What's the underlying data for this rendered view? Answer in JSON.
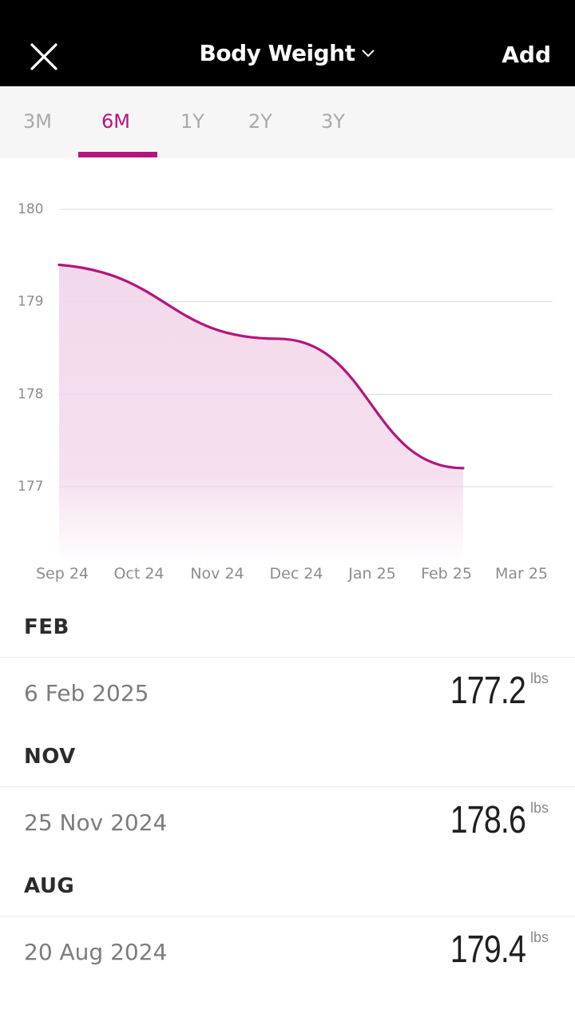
{
  "header": {
    "title": "Body Weight",
    "add_label": "Add",
    "close_icon": "close-icon",
    "dropdown_icon": "chevron-down-icon"
  },
  "tabs": [
    {
      "label": "3M",
      "active": false
    },
    {
      "label": "6M",
      "active": true
    },
    {
      "label": "1Y",
      "active": false
    },
    {
      "label": "2Y",
      "active": false
    },
    {
      "label": "3Y",
      "active": false
    }
  ],
  "colors": {
    "accent": "#b5147f",
    "fill": "#f2d6ea",
    "header_bg": "#000000",
    "tab_bg": "#f6f6f6"
  },
  "chart_data": {
    "type": "area",
    "x_labels": [
      "Sep 24",
      "Oct 24",
      "Nov 24",
      "Dec 24",
      "Jan 25",
      "Feb 25",
      "Mar 25"
    ],
    "y_ticks": [
      180,
      179,
      178,
      177
    ],
    "ylim": [
      176.2,
      180
    ],
    "series": [
      {
        "points": [
          {
            "x": "2024-08-20",
            "y": 179.4
          },
          {
            "x": "2024-11-25",
            "y": 178.6
          },
          {
            "x": "2025-02-06",
            "y": 177.2
          }
        ]
      }
    ],
    "grid": true,
    "title": "",
    "xlabel": "",
    "ylabel": ""
  },
  "entries": [
    {
      "month": "FEB",
      "date": "6 Feb 2025",
      "value": "177.2",
      "unit": "lbs"
    },
    {
      "month": "NOV",
      "date": "25 Nov 2024",
      "value": "178.6",
      "unit": "lbs"
    },
    {
      "month": "AUG",
      "date": "20 Aug 2024",
      "value": "179.4",
      "unit": "lbs"
    }
  ]
}
